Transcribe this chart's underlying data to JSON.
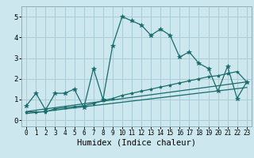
{
  "xlabel": "Humidex (Indice chaleur)",
  "xlim": [
    -0.5,
    23.5
  ],
  "ylim": [
    -0.3,
    5.5
  ],
  "xticks": [
    0,
    1,
    2,
    3,
    4,
    5,
    6,
    7,
    8,
    9,
    10,
    11,
    12,
    13,
    14,
    15,
    16,
    17,
    18,
    19,
    20,
    21,
    22,
    23
  ],
  "yticks": [
    0,
    1,
    2,
    3,
    4,
    5
  ],
  "bg_color": "#cce8ee",
  "grid_color": "#aaccd4",
  "line_color": "#1a6b6b",
  "line1_x": [
    0,
    1,
    2,
    3,
    4,
    5,
    6,
    7,
    8,
    9,
    10,
    11,
    12,
    13,
    14,
    15,
    16,
    17,
    18,
    19,
    20,
    21,
    22,
    23
  ],
  "line1_y": [
    0.7,
    1.3,
    0.5,
    1.3,
    1.3,
    1.5,
    0.6,
    2.5,
    1.0,
    3.6,
    5.0,
    4.8,
    4.6,
    4.1,
    4.4,
    4.1,
    3.05,
    3.3,
    2.75,
    2.5,
    1.4,
    2.6,
    1.05,
    1.85
  ],
  "line2_x": [
    0,
    1,
    2,
    3,
    4,
    5,
    6,
    7,
    8,
    9,
    10,
    11,
    12,
    13,
    14,
    15,
    16,
    17,
    18,
    19,
    20,
    21,
    22,
    23
  ],
  "line2_y": [
    0.4,
    0.4,
    0.4,
    0.55,
    0.6,
    0.65,
    0.7,
    0.8,
    0.95,
    1.05,
    1.2,
    1.3,
    1.4,
    1.5,
    1.6,
    1.7,
    1.8,
    1.9,
    2.0,
    2.1,
    2.15,
    2.25,
    2.35,
    1.85
  ],
  "line3_x": [
    0,
    23
  ],
  "line3_y": [
    0.42,
    1.85
  ],
  "line4_x": [
    0,
    23
  ],
  "line4_y": [
    0.32,
    1.58
  ]
}
